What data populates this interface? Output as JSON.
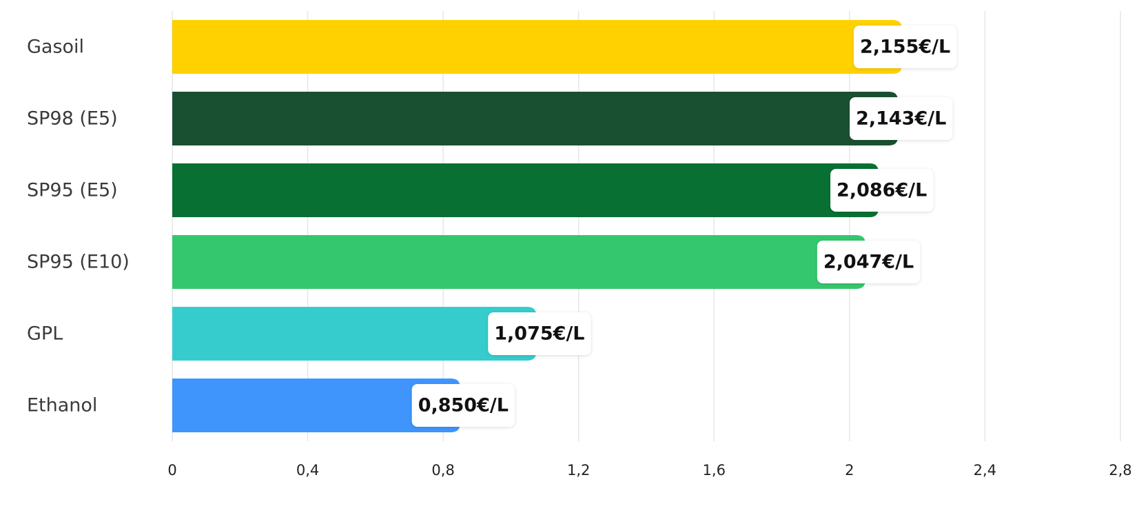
{
  "chart_data": {
    "type": "bar",
    "orientation": "horizontal",
    "title": "",
    "xlabel": "",
    "ylabel": "",
    "xlim": [
      0,
      2.8
    ],
    "grid": true,
    "legend": "none",
    "categories": [
      "Gasoil",
      "SP98 (E5)",
      "SP95 (E5)",
      "SP95 (E10)",
      "GPL",
      "Ethanol"
    ],
    "values": [
      2.155,
      2.143,
      2.086,
      2.047,
      1.075,
      0.85
    ],
    "data_labels": [
      "2,155€/L",
      "2,143€/L",
      "2,086€/L",
      "2,047€/L",
      "1,075€/L",
      "0,850€/L"
    ],
    "colors": [
      "#FFD100",
      "#1A5032",
      "#087033",
      "#35C76E",
      "#36CCCE",
      "#3F95FC"
    ],
    "ticks": [
      0,
      0.4,
      0.8,
      1.2,
      1.6,
      2,
      2.4,
      2.8
    ],
    "tick_labels": [
      "0",
      "0,4",
      "0,8",
      "1,2",
      "1,6",
      "2",
      "2,4",
      "2,8"
    ]
  }
}
